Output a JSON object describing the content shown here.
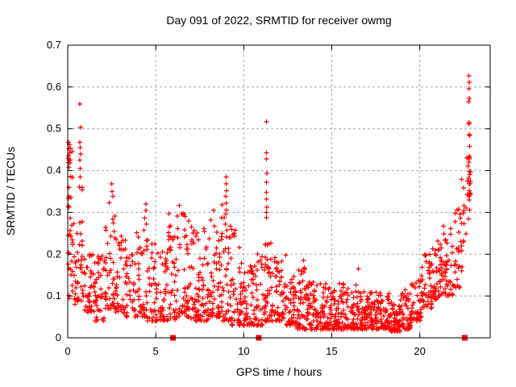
{
  "title": "Day 091 of 2022, SRMTID for receiver owmg",
  "chart_data": {
    "type": "scatter",
    "title": "Day 091 of 2022, SRMTID for receiver owmg",
    "xlabel": "GPS time / hours",
    "ylabel": "SRMTID / TECUs",
    "xlim": [
      0,
      24
    ],
    "ylim": [
      0,
      0.7
    ],
    "xticks": [
      0,
      5,
      10,
      15,
      20
    ],
    "yticks": [
      0,
      0.1,
      0.2,
      0.3,
      0.4,
      0.5,
      0.6,
      0.7
    ],
    "grid": true,
    "legend": "none",
    "marker": "plus",
    "marker_color": "#ff0000",
    "grid_color": "#a8a8a8",
    "frame_color": "#000000",
    "description": "Dense scatter of SRMTID (TECUs) vs GPS time over one day; high variability 0-12h with spikes near 0.7h (0.56), 11.3h (0.52); quiet band ~0.02-0.13 from 13-19h; rising after 19h to a large spike near 22.8h reaching 0.63. Red filled squares sit on the baseline at ~6.0h, ~10.85h and ~22.55h.",
    "density_bins": [
      [
        0.0,
        0.3,
        35,
        0.09,
        0.47,
        1.0
      ],
      [
        0.3,
        0.6,
        20,
        0.08,
        0.3,
        1.6
      ],
      [
        0.6,
        0.9,
        22,
        0.08,
        0.38,
        1.4
      ],
      [
        0.9,
        1.5,
        40,
        0.06,
        0.22,
        1.6
      ],
      [
        1.5,
        2.1,
        40,
        0.04,
        0.2,
        1.6
      ],
      [
        2.1,
        2.7,
        45,
        0.07,
        0.33,
        1.8
      ],
      [
        2.7,
        3.3,
        40,
        0.06,
        0.26,
        1.8
      ],
      [
        3.3,
        3.9,
        35,
        0.05,
        0.2,
        1.7
      ],
      [
        3.9,
        4.5,
        40,
        0.05,
        0.3,
        2.0
      ],
      [
        4.5,
        5.1,
        40,
        0.04,
        0.24,
        1.8
      ],
      [
        5.1,
        5.7,
        40,
        0.04,
        0.22,
        1.8
      ],
      [
        5.7,
        6.3,
        45,
        0.04,
        0.3,
        2.0
      ],
      [
        6.3,
        6.9,
        45,
        0.05,
        0.3,
        2.0
      ],
      [
        6.9,
        7.5,
        45,
        0.04,
        0.27,
        1.9
      ],
      [
        7.5,
        8.1,
        45,
        0.04,
        0.3,
        2.0
      ],
      [
        8.1,
        8.7,
        50,
        0.05,
        0.3,
        1.8
      ],
      [
        8.7,
        9.3,
        50,
        0.04,
        0.33,
        1.8
      ],
      [
        9.3,
        9.9,
        45,
        0.03,
        0.26,
        1.8
      ],
      [
        9.9,
        10.5,
        40,
        0.03,
        0.18,
        1.7
      ],
      [
        10.5,
        11.1,
        45,
        0.03,
        0.22,
        1.8
      ],
      [
        11.1,
        11.7,
        50,
        0.04,
        0.24,
        1.9
      ],
      [
        11.7,
        12.3,
        45,
        0.04,
        0.2,
        1.9
      ],
      [
        12.3,
        12.9,
        45,
        0.03,
        0.16,
        1.8
      ],
      [
        12.9,
        13.5,
        50,
        0.02,
        0.17,
        1.9
      ],
      [
        13.5,
        14.1,
        50,
        0.02,
        0.14,
        1.8
      ],
      [
        14.1,
        14.7,
        50,
        0.02,
        0.13,
        1.8
      ],
      [
        14.7,
        15.3,
        50,
        0.02,
        0.12,
        1.7
      ],
      [
        15.3,
        15.9,
        50,
        0.02,
        0.13,
        1.8
      ],
      [
        15.9,
        16.5,
        50,
        0.02,
        0.13,
        1.8
      ],
      [
        16.5,
        17.1,
        50,
        0.02,
        0.11,
        1.7
      ],
      [
        17.1,
        17.7,
        50,
        0.02,
        0.11,
        1.7
      ],
      [
        17.7,
        18.3,
        50,
        0.02,
        0.11,
        1.7
      ],
      [
        18.3,
        18.9,
        55,
        0.015,
        0.1,
        1.7
      ],
      [
        18.9,
        19.5,
        50,
        0.02,
        0.12,
        1.7
      ],
      [
        19.5,
        20.1,
        45,
        0.04,
        0.14,
        1.5
      ],
      [
        20.1,
        20.7,
        45,
        0.07,
        0.2,
        1.4
      ],
      [
        20.7,
        21.3,
        45,
        0.09,
        0.24,
        1.5
      ],
      [
        21.3,
        21.9,
        40,
        0.1,
        0.28,
        1.6
      ],
      [
        21.9,
        22.35,
        25,
        0.12,
        0.32,
        1.5
      ],
      [
        22.35,
        22.65,
        15,
        0.15,
        0.38,
        1.4
      ],
      [
        22.65,
        22.9,
        18,
        0.27,
        0.52,
        1.0
      ]
    ],
    "outlier_points": [
      [
        0.68,
        0.559
      ],
      [
        0.73,
        0.503
      ],
      [
        0.68,
        0.468
      ],
      [
        0.71,
        0.455
      ],
      [
        0.73,
        0.44
      ],
      [
        0.68,
        0.425
      ],
      [
        0.7,
        0.405
      ],
      [
        0.72,
        0.385
      ],
      [
        0.05,
        0.468
      ],
      [
        0.1,
        0.462
      ],
      [
        0.07,
        0.452
      ],
      [
        0.12,
        0.443
      ],
      [
        0.05,
        0.435
      ],
      [
        0.1,
        0.425
      ],
      [
        0.14,
        0.418
      ],
      [
        0.07,
        0.408
      ],
      [
        0.16,
        0.385
      ],
      [
        2.5,
        0.368
      ],
      [
        2.52,
        0.35
      ],
      [
        2.56,
        0.338
      ],
      [
        4.45,
        0.32
      ],
      [
        4.45,
        0.305
      ],
      [
        6.35,
        0.316
      ],
      [
        8.3,
        0.305
      ],
      [
        9.0,
        0.385
      ],
      [
        9.0,
        0.368
      ],
      [
        9.02,
        0.352
      ],
      [
        8.98,
        0.338
      ],
      [
        9.0,
        0.322
      ],
      [
        11.3,
        0.517
      ],
      [
        11.3,
        0.443
      ],
      [
        11.28,
        0.428
      ],
      [
        11.32,
        0.393
      ],
      [
        11.3,
        0.372
      ],
      [
        11.28,
        0.348
      ],
      [
        11.3,
        0.332
      ],
      [
        11.32,
        0.312
      ],
      [
        11.3,
        0.3
      ],
      [
        11.28,
        0.287
      ],
      [
        12.4,
        0.198
      ],
      [
        13.4,
        0.185
      ],
      [
        16.5,
        0.165
      ],
      [
        22.78,
        0.627
      ],
      [
        22.8,
        0.611
      ],
      [
        22.78,
        0.596
      ],
      [
        22.8,
        0.573
      ],
      [
        22.78,
        0.565
      ],
      [
        22.8,
        0.515
      ],
      [
        22.78,
        0.512
      ],
      [
        22.82,
        0.486
      ],
      [
        22.8,
        0.428
      ],
      [
        22.78,
        0.42
      ],
      [
        22.8,
        0.398
      ],
      [
        22.78,
        0.382
      ],
      [
        22.82,
        0.368
      ],
      [
        22.8,
        0.352
      ],
      [
        22.78,
        0.338
      ]
    ],
    "baseline_square_markers_x": [
      5.98,
      10.85,
      22.55
    ]
  }
}
